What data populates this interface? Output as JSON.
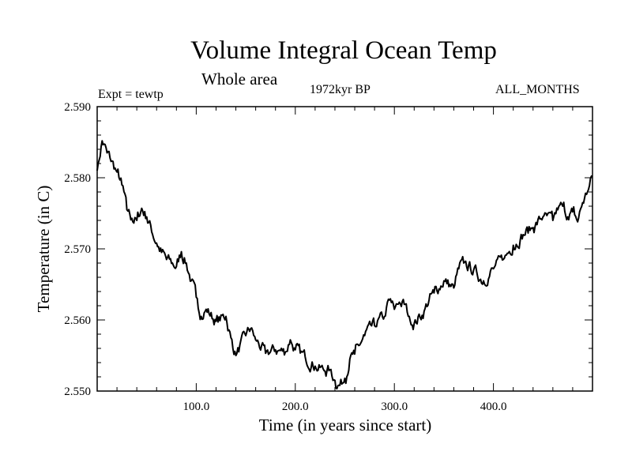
{
  "chart_data": {
    "type": "line",
    "title": "Volume Integral Ocean Temp",
    "subtitle": "Whole area",
    "annotations": {
      "left": "Expt = tewtp",
      "center": "1972kyr BP",
      "right": "ALL_MONTHS"
    },
    "xlabel": "Time (in years since start)",
    "ylabel": "Temperature (in C)",
    "xlim": [
      0,
      500
    ],
    "ylim": [
      2.55,
      2.59
    ],
    "xticks": [
      100,
      200,
      300,
      400
    ],
    "xtick_labels": [
      "100.0",
      "200.0",
      "300.0",
      "400.0"
    ],
    "yticks": [
      2.55,
      2.56,
      2.57,
      2.58,
      2.59
    ],
    "ytick_labels": [
      "2.550",
      "2.560",
      "2.570",
      "2.580",
      "2.590"
    ],
    "grid": false,
    "series": [
      {
        "name": "Volume Integral Ocean Temp",
        "x": [
          0,
          5,
          10,
          20,
          25,
          30,
          35,
          40,
          45,
          50,
          60,
          65,
          70,
          80,
          85,
          90,
          95,
          100,
          105,
          110,
          120,
          130,
          135,
          140,
          150,
          155,
          160,
          170,
          180,
          190,
          195,
          200,
          210,
          220,
          230,
          235,
          240,
          245,
          250,
          255,
          260,
          270,
          280,
          290,
          295,
          300,
          305,
          310,
          315,
          320,
          330,
          335,
          340,
          350,
          360,
          365,
          370,
          380,
          390,
          400,
          410,
          420,
          430,
          440,
          450,
          460,
          465,
          470,
          475,
          480,
          485,
          490,
          495,
          500
        ],
        "values": [
          2.581,
          2.5852,
          2.5835,
          2.5808,
          2.579,
          2.5755,
          2.5743,
          2.574,
          2.5757,
          2.5745,
          2.5708,
          2.5695,
          2.5685,
          2.5675,
          2.5696,
          2.568,
          2.5655,
          2.5632,
          2.5605,
          2.5615,
          2.5598,
          2.5605,
          2.5575,
          2.555,
          2.5578,
          2.5588,
          2.5572,
          2.5553,
          2.5558,
          2.5555,
          2.5572,
          2.5558,
          2.5548,
          2.5535,
          2.5528,
          2.553,
          2.5515,
          2.5508,
          2.5518,
          2.5545,
          2.5552,
          2.5578,
          2.5592,
          2.5605,
          2.5628,
          2.5615,
          2.5625,
          2.5622,
          2.5605,
          2.5595,
          2.5612,
          2.5628,
          2.5638,
          2.5655,
          2.5645,
          2.5672,
          2.568,
          2.567,
          2.5655,
          2.5672,
          2.5685,
          2.5705,
          2.572,
          2.573,
          2.5745,
          2.574,
          2.5755,
          2.576,
          2.5745,
          2.5752,
          2.5738,
          2.5765,
          2.578,
          2.5802
        ]
      }
    ]
  }
}
